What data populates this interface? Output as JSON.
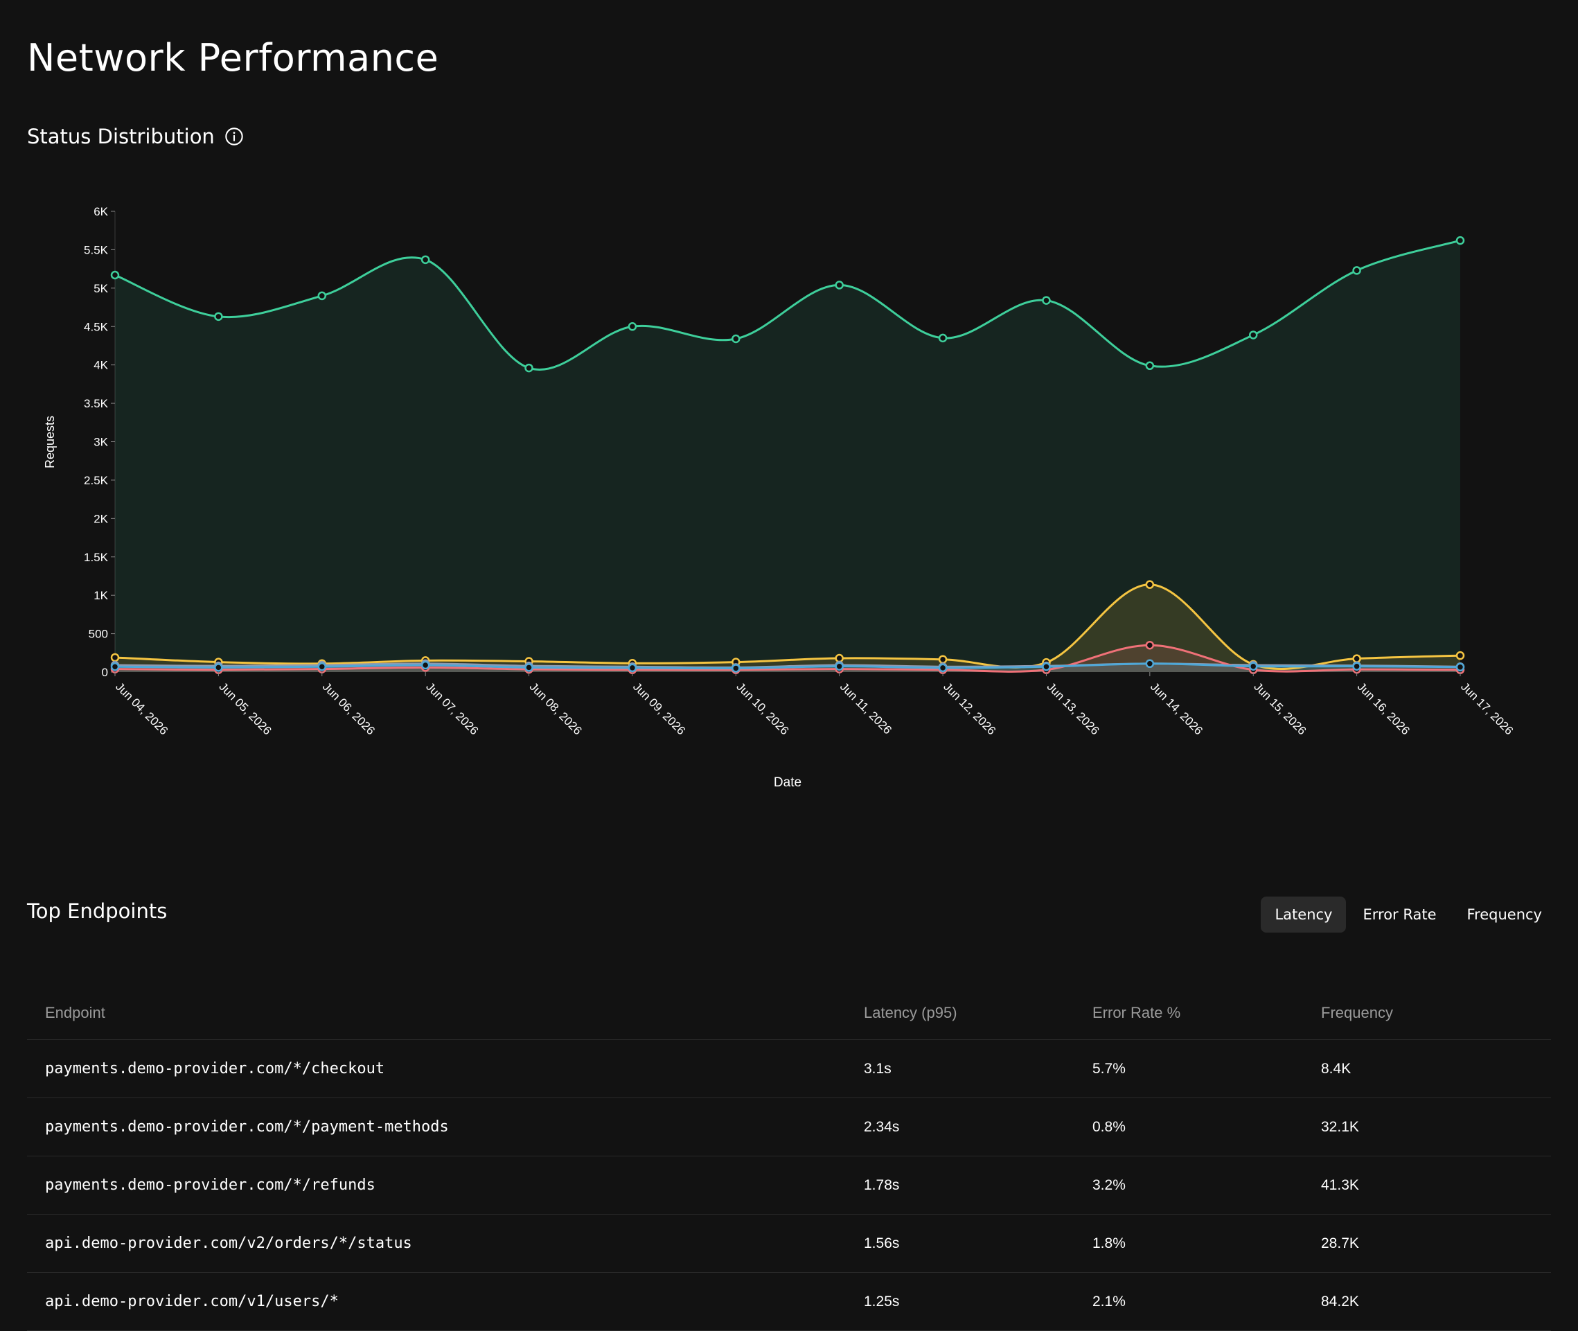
{
  "page": {
    "title": "Network Performance"
  },
  "status_section": {
    "title": "Status Distribution",
    "info_icon": "info-icon"
  },
  "chart_data": {
    "type": "area",
    "xlabel": "Date",
    "ylabel": "Requests",
    "ylim": [
      0,
      6000
    ],
    "yticks": [
      0,
      500,
      1000,
      1500,
      2000,
      2500,
      3000,
      3500,
      4000,
      4500,
      5000,
      5500,
      6000
    ],
    "ytick_labels": [
      "0",
      "500",
      "1K",
      "1.5K",
      "2K",
      "2.5K",
      "3K",
      "3.5K",
      "4K",
      "4.5K",
      "5K",
      "5.5K",
      "6K"
    ],
    "grid": false,
    "categories": [
      "Jun 04, 2026",
      "Jun 05, 2026",
      "Jun 06, 2026",
      "Jun 07, 2026",
      "Jun 08, 2026",
      "Jun 09, 2026",
      "Jun 10, 2026",
      "Jun 11, 2026",
      "Jun 12, 2026",
      "Jun 13, 2026",
      "Jun 14, 2026",
      "Jun 15, 2026",
      "Jun 16, 2026",
      "Jun 17, 2026"
    ],
    "series": [
      {
        "color": "#3ecf9b",
        "values": [
          5170,
          4630,
          4900,
          5370,
          3960,
          4500,
          4340,
          5040,
          4350,
          4840,
          3990,
          4390,
          5230,
          5620
        ]
      },
      {
        "color": "#f5c542",
        "values": [
          190,
          130,
          110,
          150,
          140,
          115,
          130,
          180,
          165,
          125,
          1140,
          100,
          175,
          215
        ]
      },
      {
        "color": "#8f9ab0",
        "values": [
          90,
          80,
          90,
          110,
          80,
          70,
          60,
          90,
          70,
          80,
          110,
          90,
          85,
          70
        ]
      },
      {
        "color": "#f07178",
        "values": [
          40,
          30,
          40,
          60,
          35,
          30,
          30,
          40,
          30,
          30,
          350,
          30,
          35,
          30
        ]
      },
      {
        "color": "#4fa8d8",
        "values": [
          70,
          60,
          70,
          90,
          60,
          55,
          50,
          75,
          55,
          70,
          110,
          75,
          75,
          65
        ]
      }
    ]
  },
  "endpoints_section": {
    "title": "Top Endpoints"
  },
  "tabs": [
    {
      "label": "Latency",
      "active": true
    },
    {
      "label": "Error Rate",
      "active": false
    },
    {
      "label": "Frequency",
      "active": false
    }
  ],
  "table": {
    "headers": [
      "Endpoint",
      "Latency (p95)",
      "Error Rate %",
      "Frequency"
    ],
    "rows": [
      [
        "payments.demo-provider.com/*/checkout",
        "3.1s",
        "5.7%",
        "8.4K"
      ],
      [
        "payments.demo-provider.com/*/payment-methods",
        "2.34s",
        "0.8%",
        "32.1K"
      ],
      [
        "payments.demo-provider.com/*/refunds",
        "1.78s",
        "3.2%",
        "41.3K"
      ],
      [
        "api.demo-provider.com/v2/orders/*/status",
        "1.56s",
        "1.8%",
        "28.7K"
      ],
      [
        "api.demo-provider.com/v1/users/*",
        "1.25s",
        "2.1%",
        "84.2K"
      ]
    ]
  }
}
